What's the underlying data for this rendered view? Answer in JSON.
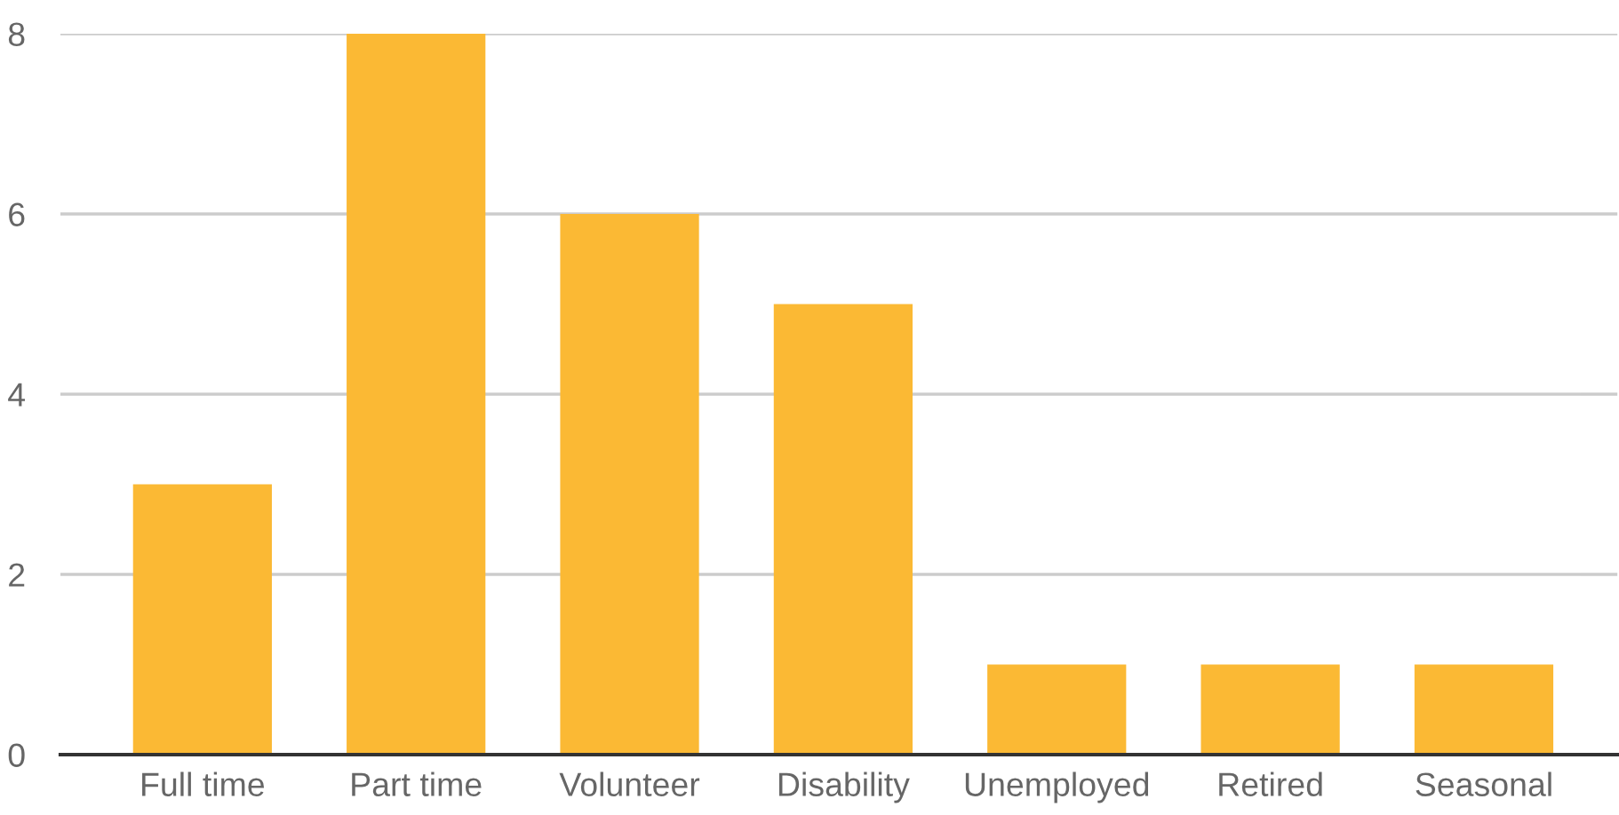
{
  "chart_data": {
    "type": "bar",
    "categories": [
      "Full time",
      "Part time",
      "Volunteer",
      "Disability",
      "Unemployed",
      "Retired",
      "Seasonal"
    ],
    "values": [
      3,
      8,
      6,
      5,
      1,
      1,
      1
    ],
    "color": "#fbb934",
    "ylim": [
      0,
      8
    ],
    "yticks": [
      0,
      2,
      4,
      6,
      8
    ],
    "grid": "y"
  }
}
